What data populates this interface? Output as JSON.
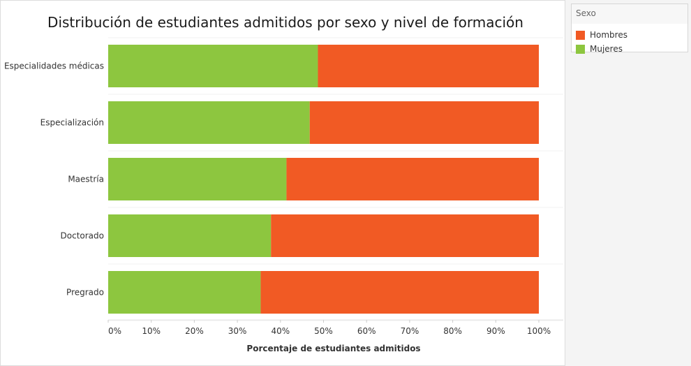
{
  "chart_data": {
    "type": "bar",
    "orientation": "horizontal",
    "stacked": true,
    "title": "Distribución de estudiantes admitidos por sexo y nivel de formación",
    "xlabel": "Porcentaje de estudiantes admitidos",
    "ylabel": "",
    "xlim": [
      0,
      100
    ],
    "x_ticks": [
      "0%",
      "10%",
      "20%",
      "30%",
      "40%",
      "50%",
      "60%",
      "70%",
      "80%",
      "90%",
      "100%"
    ],
    "categories": [
      "Especialidades médicas",
      "Especialización",
      "Maestría",
      "Doctorado",
      "Pregrado"
    ],
    "series": [
      {
        "name": "Mujeres",
        "color": "#8dc63f",
        "values": [
          48.7,
          46.8,
          41.4,
          37.8,
          35.4
        ]
      },
      {
        "name": "Hombres",
        "color": "#f15a24",
        "values": [
          51.3,
          53.2,
          58.6,
          62.2,
          64.6
        ]
      }
    ],
    "grid": true,
    "legend_position": "top-right"
  },
  "legend": {
    "title": "Sexo",
    "items": [
      {
        "label": "Hombres",
        "color": "#f15a24"
      },
      {
        "label": "Mujeres",
        "color": "#8dc63f"
      }
    ]
  }
}
